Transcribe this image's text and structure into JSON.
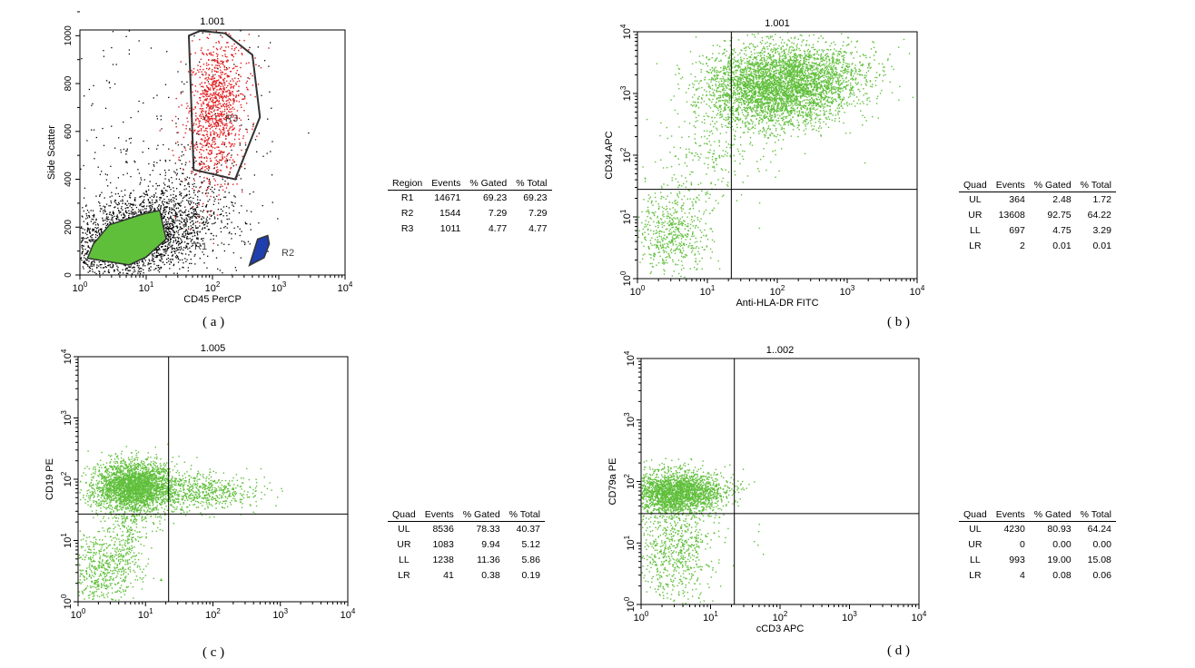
{
  "colors": {
    "green": "#5fbf3a",
    "red": "#e31a1c",
    "blue": "#1f3fae",
    "black": "#000000"
  },
  "panels": [
    {
      "id": "a",
      "caption": "( a )",
      "title": "1.001",
      "xlabel": "CD45 PerCP",
      "ylabel": "Side Scatter",
      "table": {
        "headers": [
          "Region",
          "Events",
          "% Gated",
          "% Total"
        ],
        "rows": [
          [
            "R1",
            "14671",
            "69.23",
            "69.23"
          ],
          [
            "R2",
            "1544",
            "7.29",
            "7.29"
          ],
          [
            "R3",
            "1011",
            "4.77",
            "4.77"
          ]
        ]
      }
    },
    {
      "id": "b",
      "caption": "( b )",
      "title": "1.001",
      "xlabel": "Anti-HLA-DR FITC",
      "ylabel": "CD34 APC",
      "table": {
        "headers": [
          "Quad",
          "Events",
          "% Gated",
          "% Total"
        ],
        "rows": [
          [
            "UL",
            "364",
            "2.48",
            "1.72"
          ],
          [
            "UR",
            "13608",
            "92.75",
            "64.22"
          ],
          [
            "LL",
            "697",
            "4.75",
            "3.29"
          ],
          [
            "LR",
            "2",
            "0.01",
            "0.01"
          ]
        ]
      }
    },
    {
      "id": "c",
      "caption": "( c )",
      "title": "1.005",
      "xlabel": "",
      "ylabel": "CD19 PE",
      "table": {
        "headers": [
          "Quad",
          "Events",
          "% Gated",
          "% Total"
        ],
        "rows": [
          [
            "UL",
            "8536",
            "78.33",
            "40.37"
          ],
          [
            "UR",
            "1083",
            "9.94",
            "5.12"
          ],
          [
            "LL",
            "1238",
            "11.36",
            "5.86"
          ],
          [
            "LR",
            "41",
            "0.38",
            "0.19"
          ]
        ]
      }
    },
    {
      "id": "d",
      "caption": "( d )",
      "title": "1..002",
      "xlabel": "cCD3 APC",
      "ylabel": "CD79a PE",
      "table": {
        "headers": [
          "Quad",
          "Events",
          "% Gated",
          "% Total"
        ],
        "rows": [
          [
            "UL",
            "4230",
            "80.93",
            "64.24"
          ],
          [
            "UR",
            "0",
            "0.00",
            "0.00"
          ],
          [
            "LL",
            "993",
            "19.00",
            "15.08"
          ],
          [
            "LR",
            "4",
            "0.08",
            "0.06"
          ]
        ]
      }
    }
  ],
  "chart_data": [
    {
      "type": "scatter",
      "title": "1.001",
      "xlabel": "CD45 PerCP",
      "ylabel": "Side Scatter",
      "xscale": "log",
      "xlim": [
        1,
        10000
      ],
      "ylim": [
        0,
        1024
      ],
      "xticks": [
        "10⁰",
        "10¹",
        "10²",
        "10³",
        "10⁴"
      ],
      "yticks": [
        "0",
        "200",
        "400",
        "600",
        "800",
        "1000"
      ],
      "gates": [
        {
          "name": "R1",
          "color": "#5fbf3a",
          "x": [
            1.6,
            2.8,
            9,
            16,
            20,
            10,
            5.5,
            2.2,
            1.3
          ],
          "y": [
            130,
            210,
            255,
            270,
            150,
            75,
            42,
            60,
            70
          ]
        },
        {
          "name": "R2",
          "color": "#1f3fae",
          "x": [
            420,
            600,
            720,
            680,
            480,
            360
          ],
          "y": [
            50,
            72,
            130,
            165,
            150,
            40
          ]
        },
        {
          "name": "R3",
          "color": "#e31a1c",
          "x": [
            44,
            65,
            155,
            400,
            520,
            220,
            52
          ],
          "y": [
            1000,
            1020,
            1010,
            920,
            660,
            400,
            440
          ]
        }
      ],
      "annotations": [
        "R1",
        "R2",
        "R3"
      ]
    },
    {
      "type": "scatter",
      "title": "1.001",
      "xlabel": "Anti-HLA-DR FITC",
      "ylabel": "CD34 APC",
      "xscale": "log",
      "yscale": "log",
      "xlim": [
        1,
        10000
      ],
      "ylim": [
        1,
        10000
      ],
      "xticks": [
        "10⁰",
        "10¹",
        "10²",
        "10³",
        "10⁴"
      ],
      "yticks": [
        "10⁰",
        "10¹",
        "10²",
        "10³",
        "10⁴"
      ],
      "quadrant_divider": {
        "x": 22,
        "y": 28
      },
      "populations": [
        {
          "color": "#5fbf3a",
          "center": [
            150,
            1500
          ],
          "share": 0.93
        },
        {
          "color": "#5fbf3a",
          "center": [
            3,
            8
          ],
          "share": 0.05
        }
      ]
    },
    {
      "type": "scatter",
      "title": "1.005",
      "xlabel": "",
      "ylabel": "CD19 PE",
      "xscale": "log",
      "yscale": "log",
      "xlim": [
        1,
        10000
      ],
      "ylim": [
        1,
        10000
      ],
      "xticks": [
        "10⁰",
        "10¹",
        "10²",
        "10³",
        "10⁴"
      ],
      "yticks": [
        "10⁰",
        "10¹",
        "10²",
        "10³",
        "10⁴"
      ],
      "quadrant_divider": {
        "x": 22,
        "y": 27
      },
      "populations": [
        {
          "color": "#5fbf3a",
          "center": [
            7,
            70
          ],
          "share": 0.78
        },
        {
          "color": "#5fbf3a",
          "center": [
            60,
            65
          ],
          "share": 0.1
        },
        {
          "color": "#5fbf3a",
          "center": [
            3,
            3
          ],
          "share": 0.11
        }
      ]
    },
    {
      "type": "scatter",
      "title": "1..002",
      "xlabel": "cCD3 APC",
      "ylabel": "CD79a PE",
      "xscale": "log",
      "yscale": "log",
      "xlim": [
        1,
        10000
      ],
      "ylim": [
        1,
        10000
      ],
      "xticks": [
        "10⁰",
        "10¹",
        "10²",
        "10³",
        "10⁴"
      ],
      "yticks": [
        "10⁰",
        "10¹",
        "10²",
        "10³",
        "10⁴"
      ],
      "quadrant_divider": {
        "x": 22,
        "y": 30
      },
      "populations": [
        {
          "color": "#5fbf3a",
          "center": [
            3,
            55
          ],
          "share": 0.81
        },
        {
          "color": "#5fbf3a",
          "center": [
            3,
            6
          ],
          "share": 0.19
        }
      ]
    }
  ]
}
